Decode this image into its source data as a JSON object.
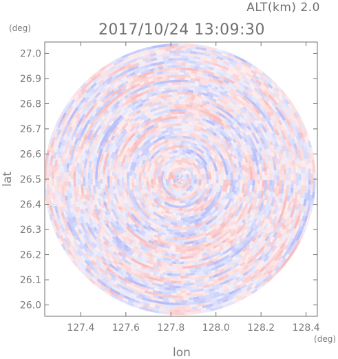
{
  "header": {
    "altitude_label": "ALT(km)  2.0",
    "datetime": "2017/10/24 13:09:30"
  },
  "chart_data": {
    "type": "heatmap",
    "title": "2017/10/24 13:09:30",
    "subtitle": "ALT(km)  2.0",
    "xlabel": "lon",
    "ylabel": "lat",
    "x_unit": "(deg)",
    "y_unit": "(deg)",
    "xlim": [
      127.24,
      128.45
    ],
    "ylim": [
      25.955,
      27.045
    ],
    "x_ticks": [
      127.4,
      127.6,
      127.8,
      128.0,
      128.2,
      128.4
    ],
    "x_tick_labels": [
      "127.4",
      "127.6",
      "127.8",
      "128.0",
      "128.2",
      "128.4"
    ],
    "y_ticks": [
      26.0,
      26.1,
      26.2,
      26.3,
      26.4,
      26.5,
      26.6,
      26.7,
      26.8,
      26.9,
      27.0
    ],
    "y_tick_labels": [
      "26.0",
      "26.1",
      "26.2",
      "26.3",
      "26.4",
      "26.5",
      "26.6",
      "26.7",
      "26.8",
      "26.9",
      "27.0"
    ],
    "radar_center": {
      "lon": 127.84,
      "lat": 26.5
    },
    "radar_extent_deg_lat": 0.54,
    "grid": false,
    "colorscale": {
      "negative": "#6f7cf0",
      "zero": "#ffffff",
      "positive": "#f07b80"
    }
  }
}
